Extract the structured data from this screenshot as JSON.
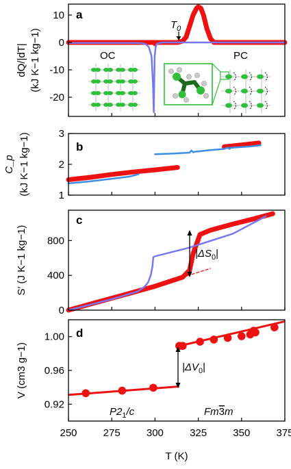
{
  "colors": {
    "red": "#ee1111",
    "blue": "#7777ee",
    "lightblue": "#3a8ee8",
    "green": "#2fbf3a",
    "darkgreen": "#1d6a1f",
    "gray": "#aaaaaa"
  },
  "chart_data": [
    {
      "id": "a",
      "type": "line",
      "letter": "a",
      "ylabel_line1": "dQ/|dT|",
      "ylabel_line2": "(kJ K−1 kg−1)",
      "xlim": [
        250,
        375
      ],
      "ylim": [
        -27,
        14
      ],
      "yticks": [
        10,
        0,
        -10,
        -20
      ],
      "annotations": {
        "t0": "T",
        "t0_sub": "0",
        "oc": "OC",
        "pc": "PC"
      },
      "series": [
        {
          "color": "red",
          "thick": true,
          "x": [
            250,
            296,
            299.5,
            300,
            300.5,
            304,
            313,
            316,
            318,
            320,
            322,
            324,
            325,
            326.5,
            328,
            330,
            332,
            334,
            375
          ],
          "y": [
            0,
            0,
            0,
            -0.5,
            0,
            0,
            0,
            0.5,
            2,
            6,
            10,
            12.5,
            13,
            12.5,
            10,
            5,
            1.5,
            0,
            0
          ]
        },
        {
          "color": "blue",
          "thick": false,
          "x": [
            250,
            290,
            293,
            295,
            296.5,
            298,
            298.8,
            299.3,
            299.8,
            300.4,
            301,
            302.5,
            305,
            375
          ],
          "y": [
            -0.2,
            -0.2,
            -0.3,
            -0.8,
            -1.8,
            -5,
            -15,
            -25.5,
            -5,
            -1.5,
            -0.6,
            -0.2,
            0,
            0
          ]
        }
      ]
    },
    {
      "id": "b",
      "type": "line",
      "letter": "b",
      "ylabel_line1": "C_p",
      "ylabel_line2": "(kJ K−1 kg−1)",
      "xlim": [
        250,
        375
      ],
      "ylim": [
        1,
        3
      ],
      "yticks": [
        3,
        2,
        1
      ],
      "series": [
        {
          "color": "red",
          "thick": true,
          "x": [
            250,
            263,
            275,
            287,
            300,
            313
          ],
          "y": [
            1.5,
            1.58,
            1.67,
            1.75,
            1.82,
            1.9
          ]
        },
        {
          "color": "red",
          "thick": true,
          "x": [
            340,
            350,
            360
          ],
          "y": [
            2.57,
            2.63,
            2.69
          ]
        },
        {
          "color": "lightblue",
          "thick": false,
          "x": [
            250,
            263,
            275,
            285,
            288,
            290.5
          ],
          "y": [
            1.38,
            1.45,
            1.53,
            1.6,
            1.64,
            1.68
          ]
        },
        {
          "color": "lightblue",
          "thick": false,
          "x": [
            300,
            311,
            320,
            321,
            322,
            323,
            332,
            340,
            342,
            343,
            344,
            355,
            361
          ],
          "y": [
            2.33,
            2.35,
            2.38,
            2.45,
            2.39,
            2.41,
            2.46,
            2.5,
            2.55,
            2.5,
            2.54,
            2.58,
            2.62
          ]
        }
      ]
    },
    {
      "id": "c",
      "type": "line",
      "letter": "c",
      "ylabel": "S′ (J K−1 kg−1)",
      "xlim": [
        250,
        375
      ],
      "ylim": [
        0,
        1150
      ],
      "yticks": [
        800,
        400,
        0
      ],
      "annotations": {
        "ds0": "|ΔS",
        "ds0_sub": "0",
        "ds0_end": "|"
      },
      "series": [
        {
          "color": "red",
          "thick": true,
          "x": [
            250,
            280,
            300,
            316,
            320,
            322,
            326,
            332,
            345,
            357,
            368
          ],
          "y": [
            0,
            165,
            275,
            380,
            460,
            650,
            870,
            920,
            990,
            1050,
            1110
          ]
        },
        {
          "color": "blue",
          "thick": false,
          "x": [
            250,
            275,
            290,
            294,
            296,
            297.5,
            298.5,
            299,
            300,
            320,
            345,
            364
          ],
          "y": [
            0,
            125,
            215,
            270,
            320,
            400,
            500,
            610,
            620,
            720,
            880,
            1080
          ]
        },
        {
          "color": "red",
          "thick": false,
          "dashed": true,
          "x": [
            316,
            332
          ],
          "y": [
            380,
            480
          ]
        }
      ]
    },
    {
      "id": "d",
      "type": "line",
      "letter": "d",
      "ylabel": "V (cm3 g−1)",
      "xlabel": "T (K)",
      "xlim": [
        250,
        375
      ],
      "ylim": [
        0.9,
        1.02
      ],
      "yticks": [
        1.0,
        0.96,
        0.92
      ],
      "ytick_labels": [
        "1.00",
        "0.96",
        "0.92"
      ],
      "xticks": [
        250,
        275,
        300,
        325,
        350,
        375
      ],
      "annotations": {
        "dv0": "|ΔV",
        "dv0_sub": "0",
        "dv0_end": "|",
        "phase_low": "P2",
        "phase_low_sub": "1",
        "phase_low_end": "/c",
        "phase_high_a": "Fm",
        "phase_high_b": "3",
        "phase_high_c": "m"
      },
      "fit_lines": [
        {
          "x": [
            250,
            314
          ],
          "y": [
            0.931,
            0.941
          ]
        },
        {
          "x": [
            314,
            375
          ],
          "y": [
            0.989,
            1.018
          ]
        }
      ],
      "points": {
        "x": [
          260,
          281,
          299,
          314,
          316,
          326,
          334,
          342,
          350,
          355,
          357,
          358,
          369
        ],
        "y": [
          0.933,
          0.936,
          0.9395,
          0.989,
          0.989,
          0.994,
          0.9965,
          0.9985,
          1.0005,
          1.0025,
          1.007,
          1.005,
          1.011
        ]
      }
    }
  ]
}
